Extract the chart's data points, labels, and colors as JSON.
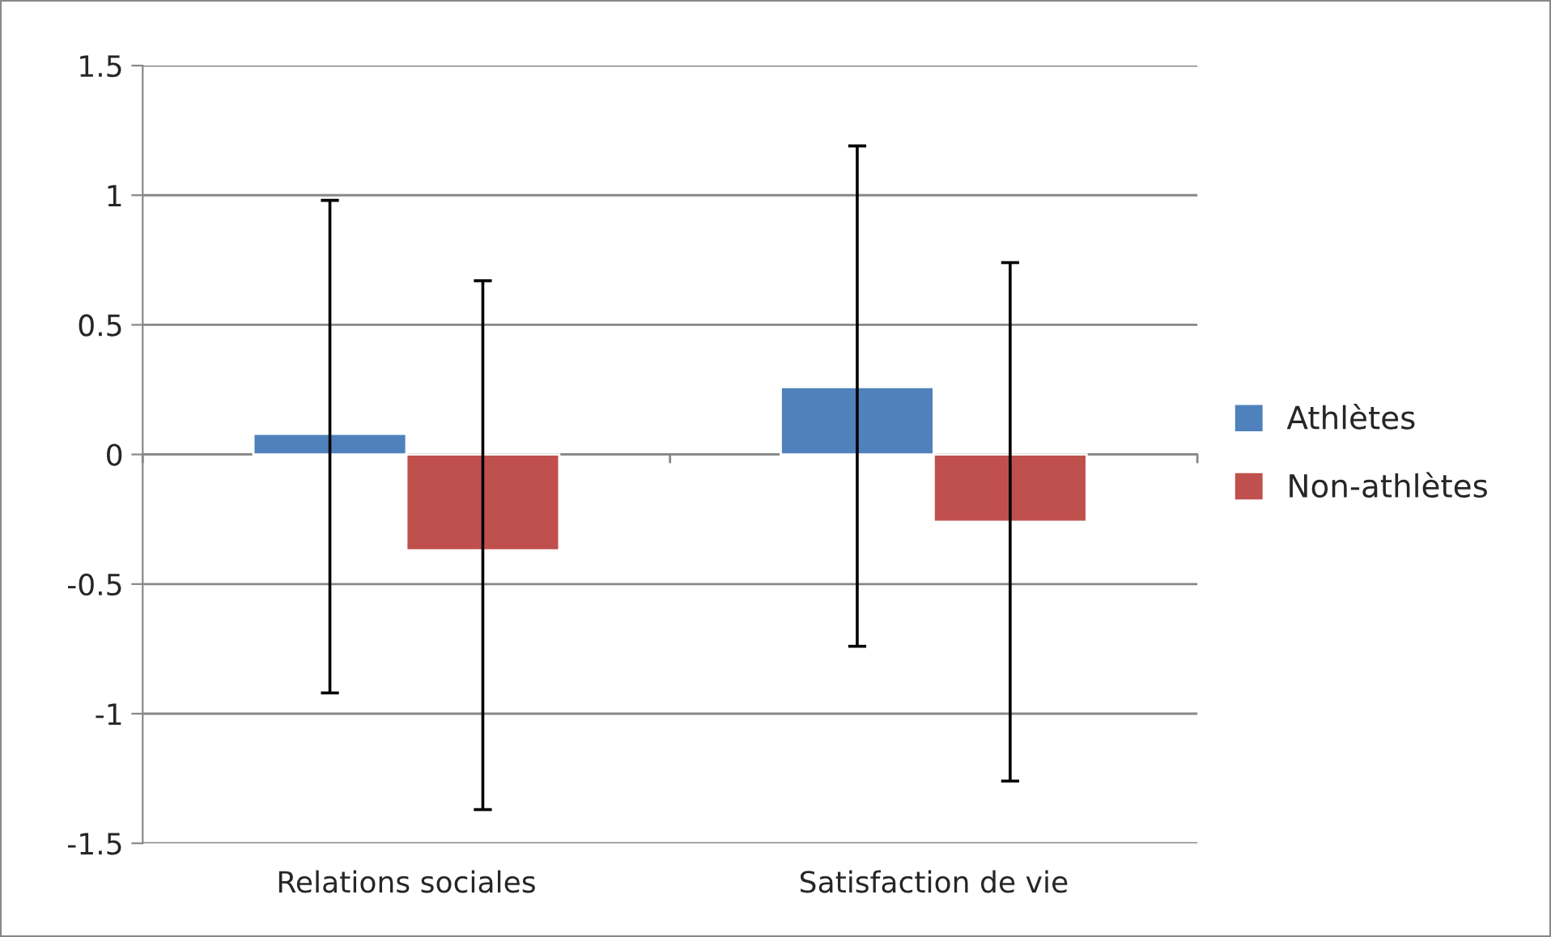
{
  "chart_data": {
    "type": "bar",
    "categories": [
      "Relations sociales",
      "Satisfaction de vie"
    ],
    "series": [
      {
        "name": "Athlètes",
        "color": "#4f81bd",
        "values": [
          0.08,
          0.26
        ],
        "errors": [
          [
            -0.92,
            0.98
          ],
          [
            -0.74,
            1.19
          ]
        ]
      },
      {
        "name": "Non-athlètes",
        "color": "#c0504d",
        "values": [
          -0.37,
          -0.26
        ],
        "errors": [
          [
            -1.37,
            0.67
          ],
          [
            -1.26,
            0.74
          ]
        ]
      }
    ],
    "ylim": [
      -1.5,
      1.5
    ],
    "yticks": [
      -1.5,
      -1,
      -0.5,
      0,
      0.5,
      1,
      1.5
    ],
    "grid": "y",
    "legend": "right"
  }
}
